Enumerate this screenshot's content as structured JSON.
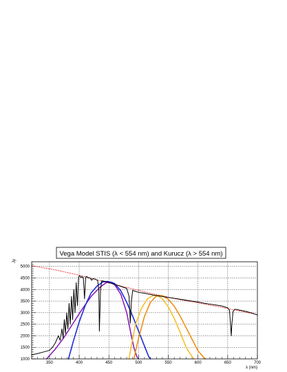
{
  "chart_data": {
    "type": "line",
    "title": "Vega Model STIS (λ < 554 nm) and Kurucz (λ > 554 nm)",
    "xlabel": "λ (nm)",
    "ylabel": "Jy",
    "xlim": [
      320,
      700
    ],
    "ylim": [
      1000,
      5200
    ],
    "x_ticks": [
      350,
      400,
      450,
      500,
      550,
      600,
      650,
      700
    ],
    "y_ticks": [
      1000,
      1500,
      2000,
      2500,
      3000,
      3500,
      4000,
      4500,
      5000
    ],
    "grid": true,
    "legend": "none",
    "colors": {
      "spectrum": "#000000",
      "continuum": "#e8322c",
      "purple": "#8a1fb8",
      "blue": "#1e2bd6",
      "yellow": "#f5bf2a",
      "orange": "#ee8f11"
    },
    "series": [
      {
        "key": "spectrum",
        "x": [
          320,
          330,
          340,
          350,
          355,
          360,
          365,
          368,
          371,
          373,
          375,
          377,
          379,
          381,
          383,
          385,
          387,
          389,
          391,
          393,
          395,
          397,
          399,
          401,
          403,
          405,
          407,
          409,
          411,
          413,
          415,
          417,
          419,
          421,
          423,
          425,
          427,
          429,
          431,
          433,
          434,
          436,
          438,
          440,
          442,
          444,
          446,
          448,
          450,
          455,
          460,
          465,
          470,
          475,
          480,
          484,
          486,
          488,
          490,
          495,
          500,
          505,
          510,
          515,
          520,
          525,
          530,
          540,
          550,
          560,
          570,
          580,
          590,
          600,
          610,
          620,
          630,
          640,
          645,
          650,
          653,
          655,
          656,
          657,
          659,
          662,
          670,
          680,
          690,
          700
        ],
        "y": [
          1180,
          1230,
          1300,
          1370,
          1500,
          1700,
          2000,
          1800,
          2300,
          1900,
          2700,
          2100,
          3000,
          2300,
          3400,
          2500,
          3700,
          2700,
          4000,
          3000,
          4300,
          3300,
          4550,
          4600,
          4520,
          4560,
          4500,
          3600,
          4550,
          4560,
          4500,
          4510,
          4480,
          4400,
          4470,
          4460,
          4450,
          4420,
          4400,
          4000,
          2200,
          4000,
          4380,
          4370,
          4360,
          4350,
          4340,
          4330,
          4300,
          4260,
          4220,
          4180,
          4140,
          4090,
          4050,
          3700,
          2550,
          3500,
          3960,
          3920,
          3880,
          3860,
          3840,
          3810,
          3790,
          3760,
          3740,
          3700,
          3660,
          3620,
          3580,
          3540,
          3500,
          3460,
          3410,
          3370,
          3330,
          3290,
          3250,
          3210,
          3100,
          2400,
          2000,
          2500,
          3050,
          3150,
          3110,
          3060,
          2990,
          2900
        ]
      },
      {
        "key": "continuum",
        "x": [
          320,
          360,
          400,
          440,
          480,
          520,
          560,
          600,
          640,
          680,
          700
        ],
        "y": [
          5030,
          4850,
          4620,
          4350,
          4090,
          3840,
          3610,
          3420,
          3230,
          3020,
          2910
        ]
      },
      {
        "key": "purple",
        "x": [
          345,
          360,
          375,
          390,
          405,
          420,
          435,
          445,
          452,
          460,
          470,
          480,
          487,
          492,
          497,
          500
        ],
        "y": [
          1000,
          1430,
          1950,
          2550,
          3150,
          3700,
          4100,
          4290,
          4320,
          4200,
          3800,
          3000,
          2100,
          1500,
          1100,
          1000
        ]
      },
      {
        "key": "blue",
        "x": [
          382,
          390,
          400,
          410,
          420,
          430,
          440,
          448,
          455,
          460,
          470,
          480,
          490,
          500,
          510,
          517,
          520
        ],
        "y": [
          1000,
          1750,
          2600,
          3300,
          3850,
          4150,
          4330,
          4350,
          4310,
          4250,
          3950,
          3450,
          2850,
          2200,
          1550,
          1100,
          1000
        ]
      },
      {
        "key": "yellow",
        "x": [
          484,
          488,
          495,
          505,
          515,
          525,
          532,
          540,
          550,
          560,
          570,
          580,
          590,
          593
        ],
        "y": [
          1000,
          1600,
          2500,
          3200,
          3600,
          3750,
          3730,
          3600,
          3250,
          2750,
          2150,
          1500,
          1100,
          1000
        ]
      },
      {
        "key": "orange",
        "x": [
          492,
          500,
          510,
          520,
          530,
          540,
          550,
          560,
          570,
          580,
          590,
          600,
          610,
          613
        ],
        "y": [
          1000,
          1900,
          2850,
          3450,
          3720,
          3740,
          3580,
          3280,
          2850,
          2350,
          1850,
          1350,
          1050,
          1000
        ]
      }
    ]
  }
}
